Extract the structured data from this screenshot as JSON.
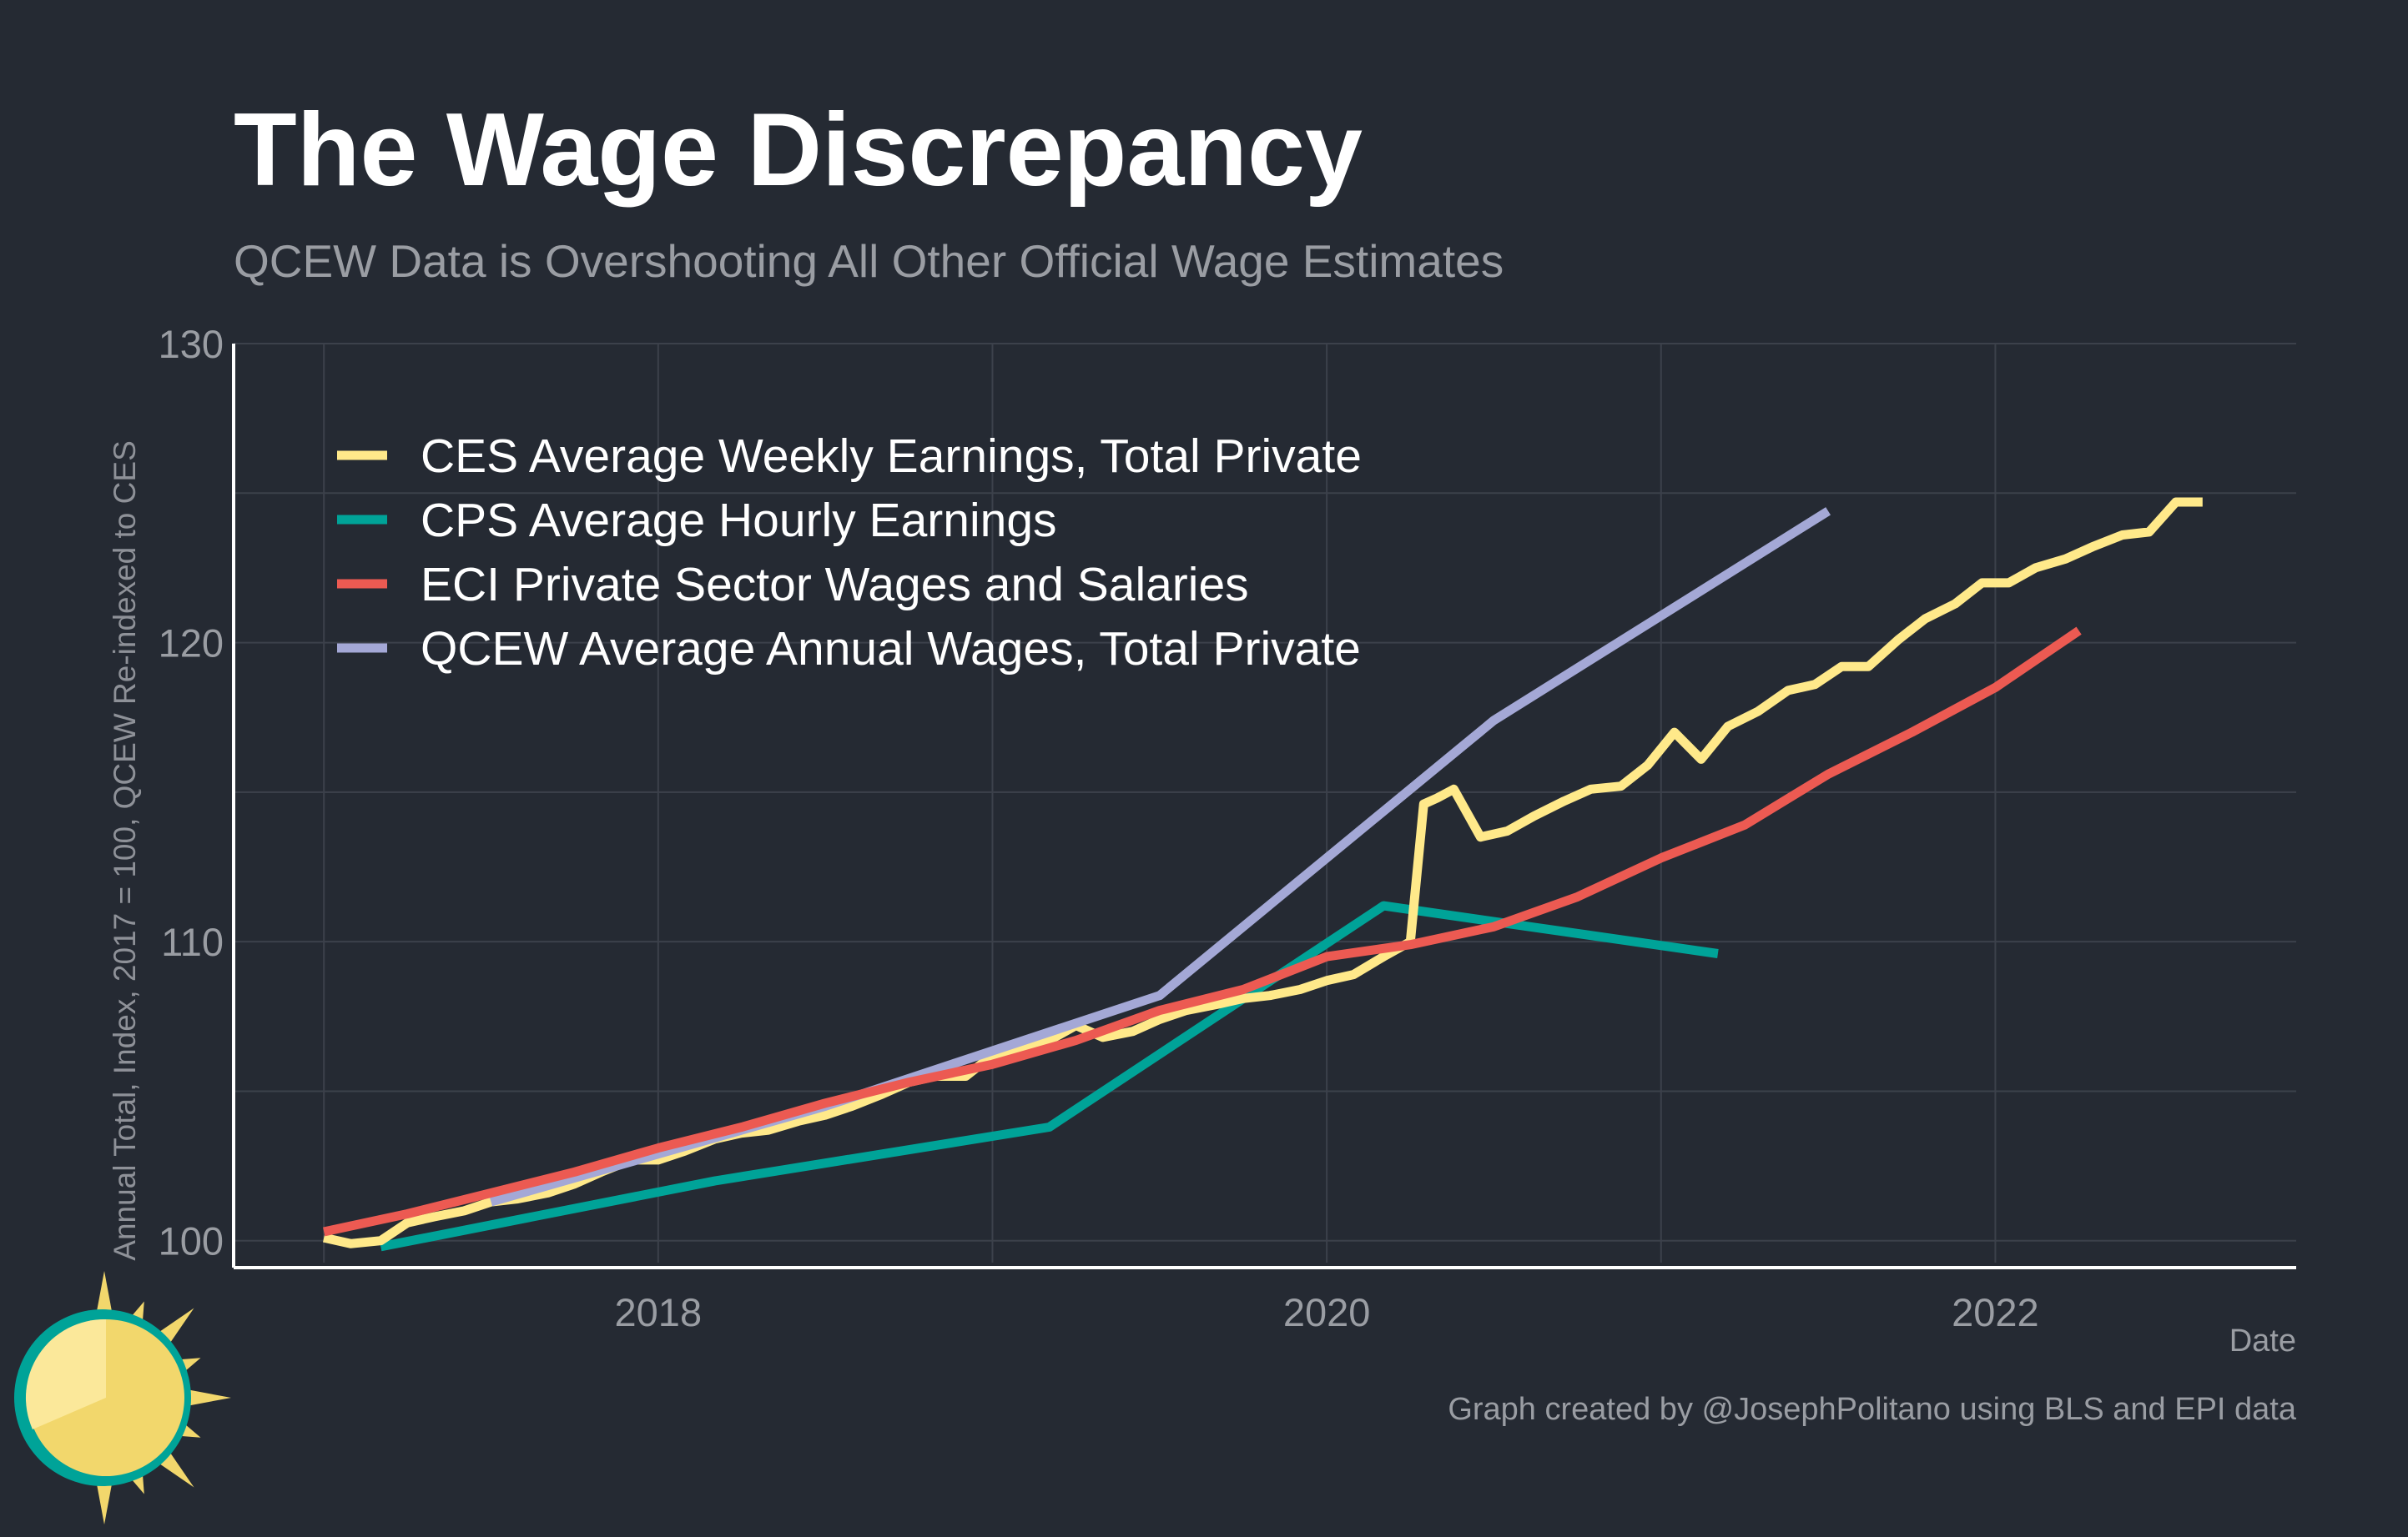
{
  "colors": {
    "background": "#252a33",
    "grid": "#3c414b",
    "axis": "#ffffff",
    "ces": "#ffe98a",
    "cps": "#00a398",
    "eci": "#ec5a52",
    "qcew": "#a4a8d6"
  },
  "logo": {
    "name": "sun-logo-icon"
  },
  "chart_data": {
    "type": "line",
    "title": "The Wage Discrepancy",
    "subtitle": "QCEW Data is Overshooting All Other Official Wage Estimates",
    "xlabel": "Date",
    "ylabel": "Annual Total, Index, 2017 = 100, QCEW Re-indexed to CES",
    "caption": "Graph created by @JosephPolitano using BLS and EPI data",
    "xlim": [
      2016.73,
      2022.9
    ],
    "ylim": [
      99.1,
      130
    ],
    "x_ticks": [
      2018,
      2020,
      2022
    ],
    "x_tick_labels": [
      "2018",
      "2020",
      "2022"
    ],
    "x_minor_ticks": [
      2017,
      2019,
      2021
    ],
    "y_ticks": [
      100,
      110,
      120,
      130
    ],
    "y_tick_labels": [
      "100",
      "110",
      "120",
      "130"
    ],
    "y_minor_ticks": [
      105,
      115,
      125
    ],
    "grid": true,
    "legend_position": "top-left",
    "series": [
      {
        "name": "CES Average Weekly Earnings, Total Private",
        "color": "#ffe98a",
        "points": [
          [
            2017.0,
            100.1
          ],
          [
            2017.08,
            99.9
          ],
          [
            2017.17,
            100.0
          ],
          [
            2017.25,
            100.6
          ],
          [
            2017.33,
            100.8
          ],
          [
            2017.42,
            101.0
          ],
          [
            2017.5,
            101.3
          ],
          [
            2017.58,
            101.4
          ],
          [
            2017.67,
            101.6
          ],
          [
            2017.75,
            101.9
          ],
          [
            2017.83,
            102.3
          ],
          [
            2017.92,
            102.7
          ],
          [
            2018.0,
            102.7
          ],
          [
            2018.08,
            103.0
          ],
          [
            2018.17,
            103.4
          ],
          [
            2018.25,
            103.6
          ],
          [
            2018.33,
            103.7
          ],
          [
            2018.42,
            104.0
          ],
          [
            2018.5,
            104.2
          ],
          [
            2018.58,
            104.5
          ],
          [
            2018.67,
            104.9
          ],
          [
            2018.75,
            105.3
          ],
          [
            2018.83,
            105.5
          ],
          [
            2018.92,
            105.5
          ],
          [
            2019.0,
            106.2
          ],
          [
            2019.08,
            106.4
          ],
          [
            2019.17,
            106.7
          ],
          [
            2019.25,
            107.2
          ],
          [
            2019.33,
            106.8
          ],
          [
            2019.42,
            107.0
          ],
          [
            2019.5,
            107.4
          ],
          [
            2019.58,
            107.7
          ],
          [
            2019.67,
            107.9
          ],
          [
            2019.75,
            108.1
          ],
          [
            2019.83,
            108.2
          ],
          [
            2019.92,
            108.4
          ],
          [
            2020.0,
            108.7
          ],
          [
            2020.08,
            108.9
          ],
          [
            2020.17,
            109.5
          ],
          [
            2020.25,
            110.0
          ],
          [
            2020.29,
            114.6
          ],
          [
            2020.33,
            114.8
          ],
          [
            2020.38,
            115.1
          ],
          [
            2020.42,
            114.3
          ],
          [
            2020.46,
            113.5
          ],
          [
            2020.54,
            113.7
          ],
          [
            2020.62,
            114.2
          ],
          [
            2020.71,
            114.7
          ],
          [
            2020.79,
            115.1
          ],
          [
            2020.88,
            115.2
          ],
          [
            2020.96,
            115.9
          ],
          [
            2021.04,
            117.0
          ],
          [
            2021.12,
            116.1
          ],
          [
            2021.2,
            117.2
          ],
          [
            2021.29,
            117.7
          ],
          [
            2021.38,
            118.4
          ],
          [
            2021.46,
            118.6
          ],
          [
            2021.54,
            119.2
          ],
          [
            2021.62,
            119.2
          ],
          [
            2021.71,
            120.1
          ],
          [
            2021.79,
            120.8
          ],
          [
            2021.88,
            121.3
          ],
          [
            2021.96,
            122.0
          ],
          [
            2022.04,
            122.0
          ],
          [
            2022.12,
            122.5
          ],
          [
            2022.21,
            122.8
          ],
          [
            2022.29,
            123.2
          ],
          [
            2022.38,
            123.6
          ],
          [
            2022.46,
            123.7
          ],
          [
            2022.54,
            124.7
          ],
          [
            2022.58,
            124.7
          ],
          [
            2022.62,
            124.7
          ]
        ]
      },
      {
        "name": "CPS Average Hourly Earnings",
        "color": "#00a398",
        "points": [
          [
            2017.17,
            99.8
          ],
          [
            2018.17,
            102.0
          ],
          [
            2019.17,
            103.8
          ],
          [
            2020.17,
            111.2
          ],
          [
            2021.17,
            109.6
          ]
        ]
      },
      {
        "name": "ECI Private Sector Wages and Salaries",
        "color": "#ec5a52",
        "points": [
          [
            2017.0,
            100.3
          ],
          [
            2017.25,
            100.9
          ],
          [
            2017.5,
            101.6
          ],
          [
            2017.75,
            102.3
          ],
          [
            2018.0,
            103.1
          ],
          [
            2018.25,
            103.8
          ],
          [
            2018.5,
            104.6
          ],
          [
            2018.75,
            105.3
          ],
          [
            2019.0,
            105.9
          ],
          [
            2019.25,
            106.7
          ],
          [
            2019.5,
            107.7
          ],
          [
            2019.75,
            108.4
          ],
          [
            2020.0,
            109.5
          ],
          [
            2020.25,
            109.9
          ],
          [
            2020.5,
            110.5
          ],
          [
            2020.75,
            111.5
          ],
          [
            2021.0,
            112.8
          ],
          [
            2021.25,
            113.9
          ],
          [
            2021.5,
            115.6
          ],
          [
            2021.75,
            117.0
          ],
          [
            2022.0,
            118.5
          ],
          [
            2022.25,
            120.4
          ]
        ]
      },
      {
        "name": "QCEW Average Annual Wages, Total Private",
        "color": "#a4a8d6",
        "points": [
          [
            2017.5,
            101.3
          ],
          [
            2018.5,
            104.5
          ],
          [
            2019.5,
            108.2
          ],
          [
            2020.5,
            117.4
          ],
          [
            2021.5,
            124.4
          ]
        ]
      }
    ]
  }
}
